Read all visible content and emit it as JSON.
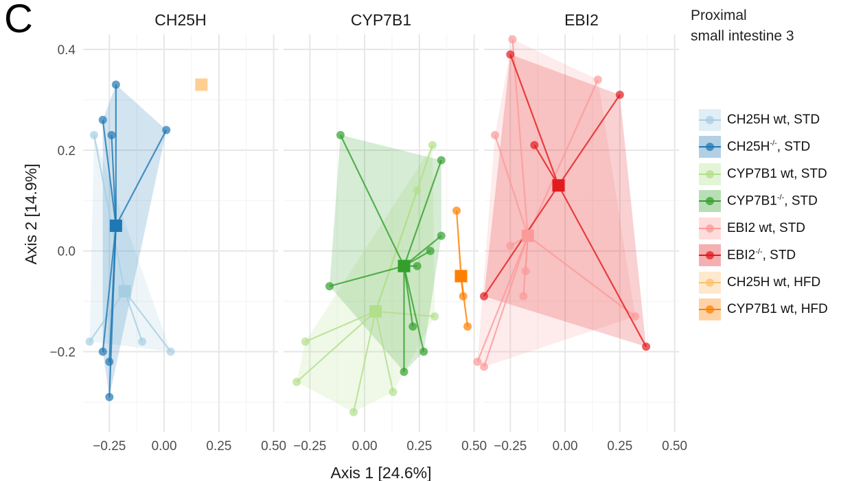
{
  "panel_letter": "C",
  "title_lines": [
    "Proximal",
    "small intestine 3"
  ],
  "legend": [
    {
      "label": "CH25H wt, STD",
      "sup": "",
      "label_after": "",
      "color": "#a6cee3"
    },
    {
      "label": "CH25H",
      "sup": "-/-",
      "label_after": ", STD",
      "color": "#1f78b4"
    },
    {
      "label": "CYP7B1 wt, STD",
      "sup": "",
      "label_after": "",
      "color": "#b2df8a"
    },
    {
      "label": "CYP7B1",
      "sup": "-/-",
      "label_after": ", STD",
      "color": "#33a02c"
    },
    {
      "label": "EBI2 wt, STD",
      "sup": "",
      "label_after": "",
      "color": "#fb9a99"
    },
    {
      "label": "EBI2",
      "sup": "-/-",
      "label_after": ", STD",
      "color": "#e31a1c"
    },
    {
      "label": "CH25H wt, HFD",
      "sup": "",
      "label_after": "",
      "color": "#fdbf6f"
    },
    {
      "label": "CYP7B1 wt, HFD",
      "sup": "",
      "label_after": "",
      "color": "#ff7f00"
    }
  ],
  "chart_data": {
    "type": "scatter",
    "subtype": "PCoA spider plot with convex hulls and centroids",
    "xlabel": "Axis 1 [24.6%]",
    "ylabel": "Axis 2 [14.9%]",
    "xlim": [
      -0.37,
      0.52
    ],
    "ylim": [
      -0.36,
      0.43
    ],
    "xticks": [
      -0.25,
      0.0,
      0.25,
      0.5
    ],
    "xtick_labels": [
      "−0.25",
      "0.00",
      "0.25",
      "0.50"
    ],
    "yticks": [
      -0.2,
      0.0,
      0.2,
      0.4
    ],
    "ytick_labels": [
      "−0.2",
      "0.0",
      "0.2",
      "0.4"
    ],
    "grid": true,
    "legend_position": "right",
    "facets": [
      {
        "title": "CH25H",
        "groups": [
          {
            "name": "CH25H wt, STD",
            "color": "#a6cee3",
            "centroid": [
              -0.18,
              -0.08
            ],
            "points": [
              [
                -0.32,
                0.23
              ],
              [
                -0.34,
                -0.18
              ],
              [
                -0.1,
                -0.18
              ],
              [
                0.03,
                -0.2
              ]
            ]
          },
          {
            "name": "CH25H-/-, STD",
            "color": "#1f78b4",
            "centroid": [
              -0.22,
              0.05
            ],
            "points": [
              [
                -0.22,
                0.33
              ],
              [
                -0.28,
                0.26
              ],
              [
                -0.24,
                0.23
              ],
              [
                0.01,
                0.24
              ],
              [
                -0.28,
                -0.2
              ],
              [
                -0.25,
                -0.22
              ],
              [
                -0.25,
                -0.29
              ]
            ]
          },
          {
            "name": "CH25H wt, HFD",
            "color": "#fdbf6f",
            "centroid": [
              0.17,
              0.33
            ],
            "points": []
          }
        ]
      },
      {
        "title": "CYP7B1",
        "groups": [
          {
            "name": "CYP7B1 wt, STD",
            "color": "#b2df8a",
            "centroid": [
              0.05,
              -0.12
            ],
            "points": [
              [
                0.31,
                0.21
              ],
              [
                0.24,
                0.12
              ],
              [
                0.32,
                -0.13
              ],
              [
                -0.27,
                -0.18
              ],
              [
                -0.31,
                -0.26
              ],
              [
                0.13,
                -0.28
              ],
              [
                -0.05,
                -0.32
              ]
            ]
          },
          {
            "name": "CYP7B1-/-, STD",
            "color": "#33a02c",
            "centroid": [
              0.18,
              -0.03
            ],
            "points": [
              [
                -0.11,
                0.23
              ],
              [
                0.35,
                0.18
              ],
              [
                0.35,
                0.03
              ],
              [
                0.3,
                0.0
              ],
              [
                0.24,
                -0.03
              ],
              [
                -0.16,
                -0.07
              ],
              [
                0.22,
                -0.15
              ],
              [
                0.27,
                -0.2
              ],
              [
                0.18,
                -0.24
              ]
            ]
          },
          {
            "name": "CYP7B1 wt, HFD",
            "color": "#ff7f00",
            "centroid": [
              0.44,
              -0.05
            ],
            "points": [
              [
                0.42,
                0.08
              ],
              [
                0.45,
                -0.09
              ],
              [
                0.47,
                -0.15
              ]
            ]
          }
        ]
      },
      {
        "title": "EBI2",
        "groups": [
          {
            "name": "EBI2 wt, STD",
            "color": "#fb9a99",
            "centroid": [
              -0.17,
              0.03
            ],
            "points": [
              [
                -0.24,
                0.42
              ],
              [
                0.15,
                0.34
              ],
              [
                -0.32,
                0.23
              ],
              [
                -0.25,
                0.01
              ],
              [
                -0.18,
                -0.04
              ],
              [
                -0.19,
                -0.09
              ],
              [
                0.32,
                -0.13
              ],
              [
                -0.4,
                -0.22
              ],
              [
                -0.37,
                -0.23
              ]
            ]
          },
          {
            "name": "EBI2-/-, STD",
            "color": "#e31a1c",
            "centroid": [
              -0.03,
              0.13
            ],
            "points": [
              [
                -0.25,
                0.39
              ],
              [
                0.25,
                0.31
              ],
              [
                -0.14,
                0.21
              ],
              [
                -0.37,
                -0.09
              ],
              [
                0.37,
                -0.19
              ]
            ]
          }
        ]
      }
    ]
  }
}
